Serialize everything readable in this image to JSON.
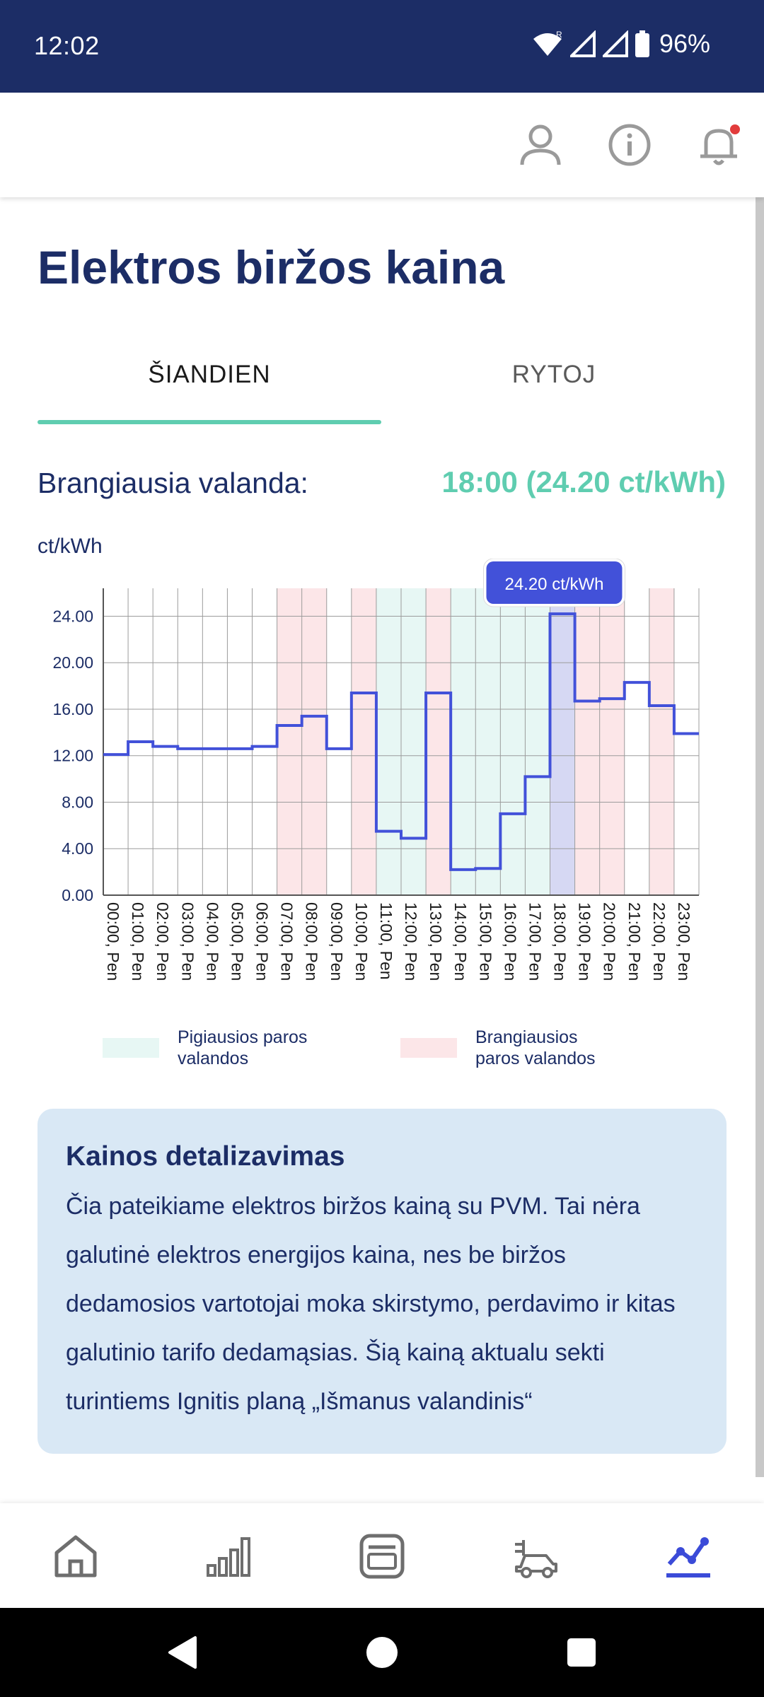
{
  "status_bar": {
    "time": "12:02",
    "battery": "96%"
  },
  "header": {
    "icons": [
      "user-icon",
      "info-icon",
      "bell-icon"
    ]
  },
  "page": {
    "title": "Elektros biržos kaina",
    "tabs": [
      {
        "label": "ŠIANDIEN",
        "active": true
      },
      {
        "label": "RYTOJ",
        "active": false
      }
    ],
    "peak_label": "Brangiausia valanda:",
    "peak_value": "18:00 (24.20 ct/kWh)",
    "unit_label": "ct/kWh"
  },
  "chart_data": {
    "type": "line",
    "step": true,
    "x": [
      "00:00, Pen",
      "01:00, Pen",
      "02:00, Pen",
      "03:00, Pen",
      "04:00, Pen",
      "05:00, Pen",
      "06:00, Pen",
      "07:00, Pen",
      "08:00, Pen",
      "09:00, Pen",
      "10:00, Pen",
      "11:00, Pen",
      "12:00, Pen",
      "13:00, Pen",
      "14:00, Pen",
      "15:00, Pen",
      "16:00, Pen",
      "17:00, Pen",
      "18:00, Pen",
      "19:00, Pen",
      "20:00, Pen",
      "21:00, Pen",
      "22:00, Pen",
      "23:00, Pen"
    ],
    "series": [
      {
        "values": [
          12.1,
          13.2,
          12.8,
          12.6,
          12.6,
          12.6,
          12.8,
          14.6,
          15.4,
          12.6,
          17.4,
          5.5,
          4.9,
          17.4,
          2.2,
          2.3,
          7.0,
          10.2,
          24.2,
          16.7,
          16.9,
          18.3,
          16.3,
          13.9
        ]
      }
    ],
    "y_ticks": [
      "0.00",
      "4.00",
      "8.00",
      "12.00",
      "16.00",
      "20.00",
      "24.00"
    ],
    "ylim": [
      0,
      26.4
    ],
    "cheap_hours": [
      11,
      12,
      14,
      15,
      16,
      17
    ],
    "expensive_hours": [
      7,
      8,
      10,
      13,
      19,
      20,
      22
    ],
    "highlight_hour": 18,
    "tooltip": "24.20 ct/kWh",
    "colors": {
      "line": "#4251d9",
      "cheap": "#e7f7f4",
      "expensive": "#fce6e8",
      "highlight": "#d2d4f2"
    },
    "legend": [
      {
        "label": "Pigiausios paros valandos",
        "color": "#e7f7f4"
      },
      {
        "label": "Brangiausios paros valandos",
        "color": "#fce6e8"
      }
    ],
    "grid": true
  },
  "info_card": {
    "title": "Kainos detalizavimas",
    "text": "Čia pateikiame elektros biržos kainą su PVM. Tai nėra galutinė elektros energijos kaina, nes be biržos dedamosios vartotojai moka skirstymo, perdavimo ir kitas galutinio tarifo dedamąsias. Šią kainą aktualu sekti turintiems Ignitis planą „Išmanus valandinis“"
  },
  "bottom_nav": {
    "items": [
      "home-icon",
      "bar-chart-icon",
      "invoice-icon",
      "ev-charger-icon",
      "price-trend-icon"
    ],
    "active_index": 4,
    "active_color": "#3b4bd8",
    "inactive_color": "#6e6e6e"
  }
}
